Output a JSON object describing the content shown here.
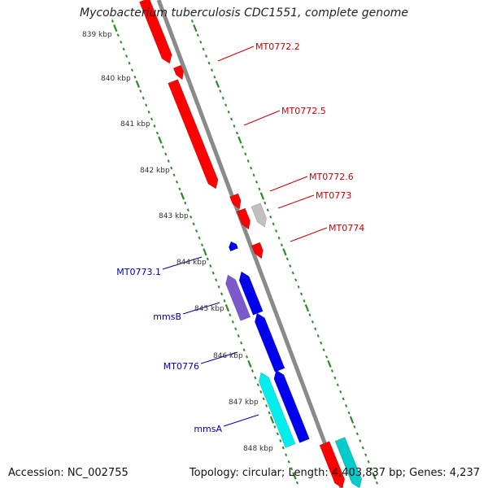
{
  "title": "Mycobacterium tuberculosis CDC1551, complete genome",
  "accession_text": "Accession: NC_002755",
  "topology_text": "Topology: circular; Length: 4,403,837 bp; Genes: 4,237",
  "colors": {
    "backbone": "#8a8a8a",
    "tick": "#2a8a2a",
    "forward_label": "#cc0000",
    "reverse_label": "#0000aa"
  },
  "kbp_ticks": [
    "839 kbp",
    "840 kbp",
    "841 kbp",
    "842 kbp",
    "843 kbp",
    "844 kbp",
    "845 kbp",
    "846 kbp",
    "847 kbp",
    "848 kbp"
  ],
  "genes": [
    {
      "name": "",
      "color": "#ff0000",
      "strand": "forward"
    },
    {
      "name": "MT0772.2",
      "color": "#ff0000",
      "strand": "forward"
    },
    {
      "name": "MT0772.5",
      "color": "#ff0000",
      "strand": "forward"
    },
    {
      "name": "MT0772.6",
      "color": "#ff0000",
      "strand": "forward"
    },
    {
      "name": "MT0773",
      "color": "#ff0000",
      "strand": "forward"
    },
    {
      "name": "",
      "color": "#c0c0c0",
      "strand": "forward"
    },
    {
      "name": "MT0774",
      "color": "#ff0000",
      "strand": "forward"
    },
    {
      "name": "MT0773.1",
      "color": "#0000ee",
      "strand": "reverse"
    },
    {
      "name": "",
      "color": "#7a5acc",
      "strand": "reverse"
    },
    {
      "name": "mmsB",
      "color": "#0000ee",
      "strand": "reverse"
    },
    {
      "name": "MT0776",
      "color": "#0000ee",
      "strand": "reverse"
    },
    {
      "name": "mmsA",
      "color": "#00eeee",
      "strand": "reverse"
    },
    {
      "name": "",
      "color": "#0000ee",
      "strand": "reverse"
    },
    {
      "name": "",
      "color": "#ff0000",
      "strand": "forward"
    },
    {
      "name": "",
      "color": "#00cccc",
      "strand": "forward"
    }
  ]
}
